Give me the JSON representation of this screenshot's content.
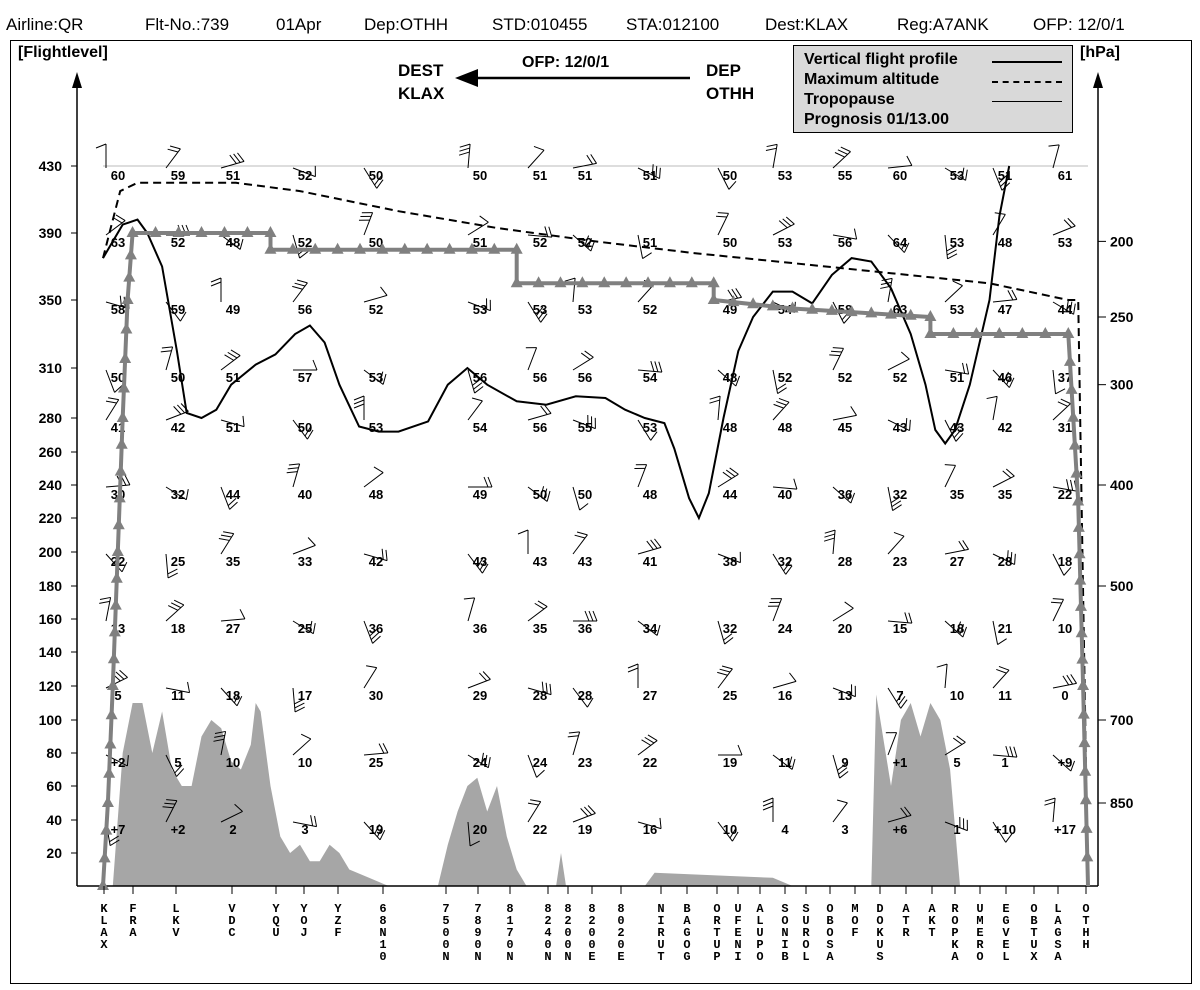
{
  "header": {
    "airline": "Airline:QR",
    "flight": "Flt-No.:739",
    "date": "01Apr",
    "dep": "Dep:OTHH",
    "std": "STD:010455",
    "sta": "STA:012100",
    "dest": "Dest:KLAX",
    "reg": "Reg:A7ANK",
    "ofp": "OFP: 12/0/1"
  },
  "route_banner": {
    "dest_label": "DEST",
    "dest_code": "KLAX",
    "ofp": "OFP: 12/0/1",
    "dep_label": "DEP",
    "dep_code": "OTHH"
  },
  "legend": {
    "line1": "Vertical flight profile",
    "line2": "Maximum altitude",
    "line3": "Tropopause",
    "line4": "Prognosis 01/13.00"
  },
  "colors": {
    "profile": "#808080",
    "terrain": "#a6a6a6",
    "legend_bg": "#d9d9d9",
    "lines": "#000000"
  },
  "chart_data": {
    "type": "line",
    "left_axis_label": "[Flightlevel]",
    "right_axis_label": "[hPa]",
    "left_ticks": [
      20,
      40,
      60,
      80,
      100,
      120,
      140,
      160,
      180,
      200,
      220,
      240,
      260,
      280,
      310,
      350,
      390,
      430
    ],
    "right_ticks": [
      {
        "fl": 50,
        "label": "850"
      },
      {
        "fl": 100,
        "label": "700"
      },
      {
        "fl": 180,
        "label": "500"
      },
      {
        "fl": 240,
        "label": "400"
      },
      {
        "fl": 300,
        "label": "300"
      },
      {
        "fl": 340,
        "label": "250"
      },
      {
        "fl": 385,
        "label": "200"
      }
    ],
    "waypoints": [
      "KLAX",
      "FRA",
      "LKV",
      "VDC",
      "YQU",
      "YOJ",
      "YZF",
      "68N10",
      "7500N",
      "7890N",
      "8170N",
      "8240N",
      "8200N",
      "8200E",
      "8020E",
      "NIRUT",
      "BAGOG",
      "ORTUP",
      "UFENI",
      "ALUPO",
      "SONIB",
      "SUROL",
      "OBOSA",
      "MOF",
      "DOKUS",
      "ATR",
      "AKT",
      "ROPKA",
      "UMERO",
      "EGVEL",
      "OBTUX",
      "LAGSA",
      "OTHH"
    ],
    "wind_levels": [
      430,
      390,
      350,
      310,
      280,
      240,
      200,
      160,
      120,
      80,
      40
    ],
    "temperature_columns": [
      {
        "col": 0,
        "values": [
          "60",
          "63",
          "58",
          "50",
          "41",
          "30",
          "22",
          "13",
          "5",
          "+2",
          "+7"
        ]
      },
      {
        "col": 1,
        "values": [
          "59",
          "52",
          "59",
          "50",
          "42",
          "32",
          "25",
          "18",
          "11",
          "5",
          "+2"
        ]
      },
      {
        "col": 2,
        "values": [
          "51",
          "48",
          "49",
          "51",
          "51",
          "44",
          "35",
          "27",
          "18",
          "10",
          "2"
        ]
      },
      {
        "col": 3,
        "values": [
          "52",
          "52",
          "56",
          "57",
          "50",
          "40",
          "33",
          "25",
          "17",
          "10",
          "3"
        ]
      },
      {
        "col": 4,
        "values": [
          "50",
          "50",
          "52",
          "53",
          "53",
          "48",
          "42",
          "36",
          "30",
          "25",
          "19"
        ]
      },
      {
        "col": 5,
        "values": [
          "50",
          "51",
          "53",
          "56",
          "54",
          "49",
          "43",
          "36",
          "29",
          "24",
          "20"
        ]
      },
      {
        "col": 6,
        "values": [
          "51",
          "52",
          "53",
          "56",
          "56",
          "50",
          "43",
          "35",
          "28",
          "24",
          "22"
        ]
      },
      {
        "col": 7,
        "values": [
          "51",
          "52",
          "53",
          "56",
          "55",
          "50",
          "43",
          "36",
          "28",
          "23",
          "19"
        ]
      },
      {
        "col": 8,
        "values": [
          "51",
          "51",
          "52",
          "54",
          "53",
          "48",
          "41",
          "34",
          "27",
          "22",
          "16"
        ]
      },
      {
        "col": 9,
        "values": [
          "50",
          "50",
          "49",
          "48",
          "48",
          "44",
          "38",
          "32",
          "25",
          "19",
          "10"
        ]
      },
      {
        "col": 10,
        "values": [
          "53",
          "53",
          "54",
          "52",
          "48",
          "40",
          "32",
          "24",
          "16",
          "11",
          "4"
        ]
      },
      {
        "col": 11,
        "values": [
          "55",
          "56",
          "58",
          "52",
          "45",
          "36",
          "28",
          "20",
          "13",
          "9",
          "3"
        ]
      },
      {
        "col": 12,
        "values": [
          "60",
          "64",
          "63",
          "52",
          "43",
          "32",
          "23",
          "15",
          "7",
          "+1",
          "+6"
        ]
      },
      {
        "col": 13,
        "values": [
          "53",
          "53",
          "53",
          "51",
          "43",
          "35",
          "27",
          "18",
          "10",
          "5",
          "1"
        ]
      },
      {
        "col": 14,
        "values": [
          "51",
          "48",
          "47",
          "46",
          "42",
          "35",
          "28",
          "21",
          "11",
          "1",
          "+10"
        ]
      },
      {
        "col": 15,
        "values": [
          "61",
          "53",
          "44",
          "37",
          "31",
          "22",
          "18",
          "10",
          "0",
          "+9",
          "+17"
        ]
      }
    ],
    "tropopause": [
      [
        0,
        375
      ],
      [
        0.01,
        385
      ],
      [
        0.02,
        395
      ],
      [
        0.035,
        398
      ],
      [
        0.045,
        390
      ],
      [
        0.06,
        370
      ],
      [
        0.075,
        320
      ],
      [
        0.085,
        283
      ],
      [
        0.1,
        280
      ],
      [
        0.115,
        285
      ],
      [
        0.13,
        300
      ],
      [
        0.155,
        312
      ],
      [
        0.175,
        318
      ],
      [
        0.195,
        330
      ],
      [
        0.21,
        335
      ],
      [
        0.225,
        325
      ],
      [
        0.24,
        300
      ],
      [
        0.26,
        275
      ],
      [
        0.28,
        272
      ],
      [
        0.3,
        272
      ],
      [
        0.33,
        278
      ],
      [
        0.35,
        300
      ],
      [
        0.37,
        310
      ],
      [
        0.39,
        300
      ],
      [
        0.42,
        290
      ],
      [
        0.45,
        288
      ],
      [
        0.48,
        293
      ],
      [
        0.51,
        292
      ],
      [
        0.53,
        285
      ],
      [
        0.55,
        280
      ],
      [
        0.57,
        277
      ],
      [
        0.58,
        262
      ],
      [
        0.595,
        232
      ],
      [
        0.605,
        220
      ],
      [
        0.615,
        235
      ],
      [
        0.63,
        280
      ],
      [
        0.645,
        320
      ],
      [
        0.66,
        340
      ],
      [
        0.68,
        355
      ],
      [
        0.7,
        355
      ],
      [
        0.72,
        348
      ],
      [
        0.74,
        365
      ],
      [
        0.76,
        375
      ],
      [
        0.78,
        373
      ],
      [
        0.8,
        357
      ],
      [
        0.82,
        330
      ],
      [
        0.835,
        300
      ],
      [
        0.845,
        273
      ],
      [
        0.855,
        265
      ],
      [
        0.865,
        273
      ],
      [
        0.88,
        300
      ],
      [
        0.9,
        350
      ],
      [
        0.91,
        400
      ],
      [
        0.92,
        430
      ]
    ],
    "maximum_altitude": [
      [
        0,
        375
      ],
      [
        0.0175,
        415
      ],
      [
        0.035,
        420
      ],
      [
        0.06,
        420
      ],
      [
        0.135,
        420
      ],
      [
        0.2,
        415
      ],
      [
        0.3,
        403
      ],
      [
        0.4,
        393
      ],
      [
        0.5,
        385
      ],
      [
        0.6,
        378
      ],
      [
        0.7,
        372
      ],
      [
        0.8,
        366
      ],
      [
        0.9,
        360
      ],
      [
        0.98,
        350
      ],
      [
        0.99,
        350
      ],
      [
        1.0,
        0
      ]
    ],
    "flight_profile": [
      [
        0,
        0
      ],
      [
        0.005,
        50
      ],
      [
        0.01,
        120
      ],
      [
        0.015,
        200
      ],
      [
        0.02,
        280
      ],
      [
        0.025,
        350
      ],
      [
        0.03,
        390
      ],
      [
        0.17,
        390
      ],
      [
        0.17,
        380
      ],
      [
        0.42,
        380
      ],
      [
        0.42,
        360
      ],
      [
        0.62,
        360
      ],
      [
        0.62,
        350
      ],
      [
        0.7,
        345
      ],
      [
        0.84,
        340
      ],
      [
        0.84,
        330
      ],
      [
        0.98,
        330
      ],
      [
        0.99,
        230
      ],
      [
        0.995,
        120
      ],
      [
        1.0,
        0
      ]
    ],
    "terrain": [
      [
        0,
        0
      ],
      [
        0.01,
        0
      ],
      [
        0.02,
        80
      ],
      [
        0.03,
        110
      ],
      [
        0.04,
        110
      ],
      [
        0.05,
        80
      ],
      [
        0.06,
        105
      ],
      [
        0.07,
        70
      ],
      [
        0.08,
        60
      ],
      [
        0.09,
        60
      ],
      [
        0.1,
        90
      ],
      [
        0.11,
        100
      ],
      [
        0.12,
        95
      ],
      [
        0.13,
        75
      ],
      [
        0.14,
        70
      ],
      [
        0.15,
        85
      ],
      [
        0.155,
        110
      ],
      [
        0.16,
        105
      ],
      [
        0.17,
        60
      ],
      [
        0.18,
        30
      ],
      [
        0.19,
        20
      ],
      [
        0.2,
        25
      ],
      [
        0.21,
        15
      ],
      [
        0.22,
        15
      ],
      [
        0.23,
        25
      ],
      [
        0.24,
        20
      ],
      [
        0.25,
        10
      ],
      [
        0.27,
        5
      ],
      [
        0.29,
        0
      ],
      [
        0.34,
        0
      ],
      [
        0.35,
        25
      ],
      [
        0.36,
        45
      ],
      [
        0.37,
        60
      ],
      [
        0.38,
        65
      ],
      [
        0.39,
        45
      ],
      [
        0.4,
        60
      ],
      [
        0.41,
        30
      ],
      [
        0.42,
        10
      ],
      [
        0.43,
        0
      ],
      [
        0.46,
        0
      ],
      [
        0.465,
        20
      ],
      [
        0.47,
        0
      ],
      [
        0.55,
        0
      ],
      [
        0.56,
        8
      ],
      [
        0.64,
        6
      ],
      [
        0.68,
        5
      ],
      [
        0.7,
        0
      ],
      [
        0.78,
        0
      ],
      [
        0.785,
        115
      ],
      [
        0.8,
        60
      ],
      [
        0.81,
        100
      ],
      [
        0.82,
        110
      ],
      [
        0.83,
        90
      ],
      [
        0.84,
        110
      ],
      [
        0.85,
        100
      ],
      [
        0.86,
        70
      ],
      [
        0.87,
        0
      ]
    ]
  }
}
